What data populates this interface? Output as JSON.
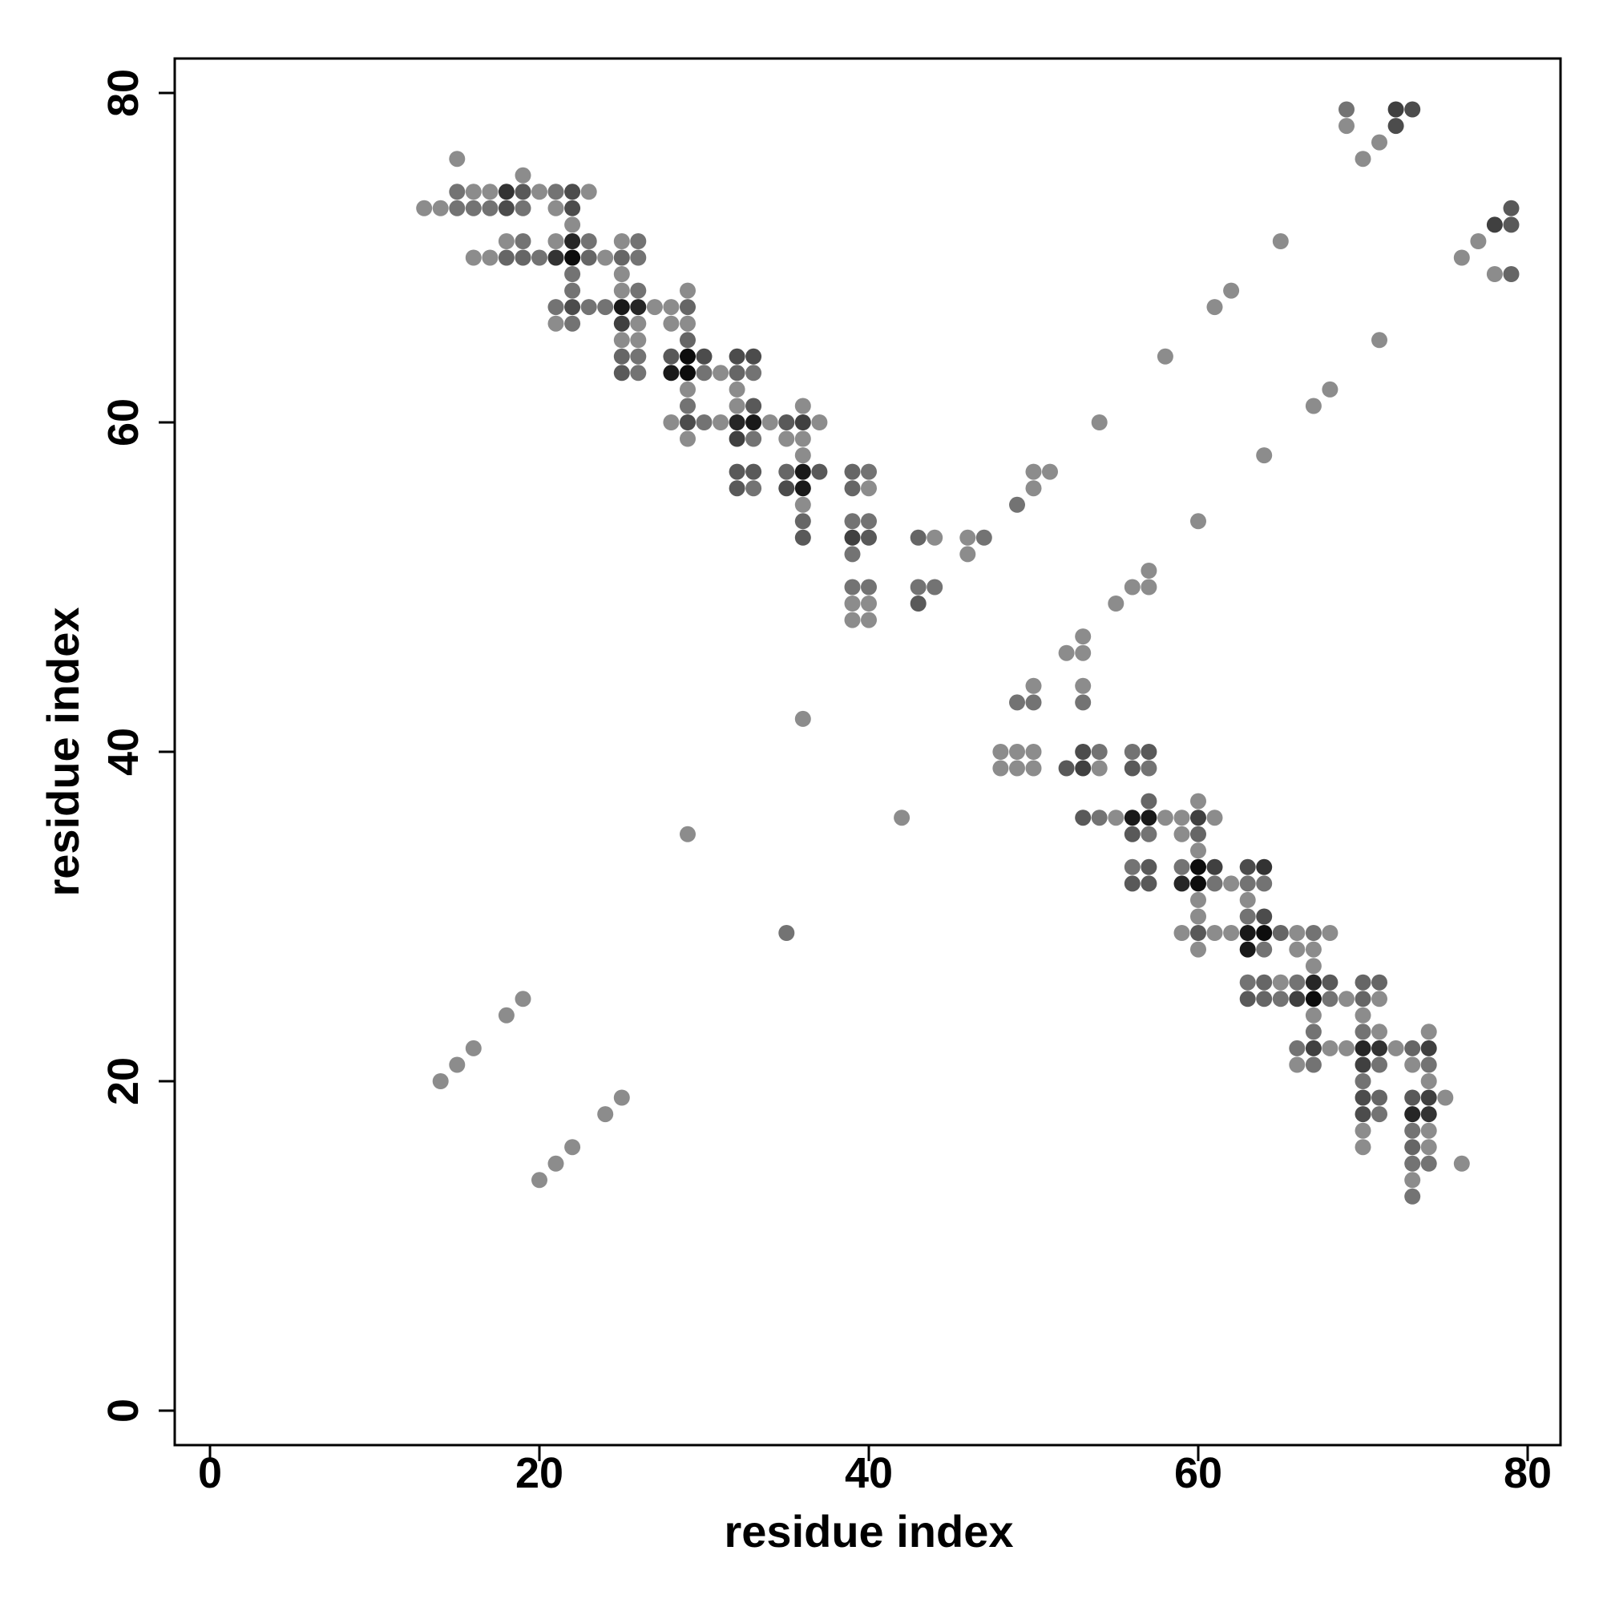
{
  "chart_data": {
    "type": "scatter",
    "title": "",
    "xlabel": "residue index",
    "ylabel": "residue index",
    "xlim": [
      -2,
      82
    ],
    "ylim": [
      -2,
      82
    ],
    "xticks": [
      0,
      20,
      40,
      60,
      80
    ],
    "yticks": [
      0,
      20,
      40,
      60,
      80
    ],
    "grid": false,
    "point_color": "#000000",
    "intensity_scale": "point opacity, 0 (light gray) to 1 (black)",
    "points": [
      [
        15,
        76,
        0.45
      ],
      [
        19,
        75,
        0.45
      ],
      [
        13,
        73,
        0.45
      ],
      [
        14,
        73,
        0.45
      ],
      [
        15,
        73,
        0.55
      ],
      [
        16,
        73,
        0.55
      ],
      [
        17,
        73,
        0.55
      ],
      [
        18,
        73,
        0.7
      ],
      [
        19,
        73,
        0.55
      ],
      [
        21,
        73,
        0.45
      ],
      [
        22,
        73,
        0.7
      ],
      [
        15,
        74,
        0.55
      ],
      [
        16,
        74,
        0.45
      ],
      [
        17,
        74,
        0.45
      ],
      [
        18,
        74,
        0.8
      ],
      [
        19,
        74,
        0.65
      ],
      [
        20,
        74,
        0.45
      ],
      [
        21,
        74,
        0.55
      ],
      [
        22,
        74,
        0.7
      ],
      [
        23,
        74,
        0.45
      ],
      [
        22,
        72,
        0.45
      ],
      [
        18,
        71,
        0.45
      ],
      [
        19,
        71,
        0.55
      ],
      [
        21,
        71,
        0.45
      ],
      [
        22,
        71,
        0.85
      ],
      [
        23,
        71,
        0.55
      ],
      [
        25,
        71,
        0.45
      ],
      [
        26,
        71,
        0.55
      ],
      [
        16,
        70,
        0.45
      ],
      [
        17,
        70,
        0.45
      ],
      [
        18,
        70,
        0.6
      ],
      [
        19,
        70,
        0.6
      ],
      [
        20,
        70,
        0.55
      ],
      [
        21,
        70,
        0.8
      ],
      [
        22,
        70,
        0.95
      ],
      [
        23,
        70,
        0.6
      ],
      [
        24,
        70,
        0.45
      ],
      [
        25,
        70,
        0.6
      ],
      [
        26,
        70,
        0.55
      ],
      [
        22,
        69,
        0.55
      ],
      [
        25,
        69,
        0.45
      ],
      [
        22,
        68,
        0.55
      ],
      [
        25,
        68,
        0.45
      ],
      [
        26,
        68,
        0.55
      ],
      [
        21,
        67,
        0.55
      ],
      [
        22,
        67,
        0.7
      ],
      [
        23,
        67,
        0.55
      ],
      [
        24,
        67,
        0.55
      ],
      [
        25,
        67,
        0.9
      ],
      [
        26,
        67,
        0.85
      ],
      [
        27,
        67,
        0.45
      ],
      [
        28,
        67,
        0.45
      ],
      [
        29,
        67,
        0.6
      ],
      [
        29,
        68,
        0.45
      ],
      [
        21,
        66,
        0.45
      ],
      [
        22,
        66,
        0.55
      ],
      [
        25,
        66,
        0.75
      ],
      [
        26,
        66,
        0.45
      ],
      [
        28,
        66,
        0.45
      ],
      [
        29,
        66,
        0.45
      ],
      [
        25,
        65,
        0.45
      ],
      [
        26,
        65,
        0.45
      ],
      [
        29,
        65,
        0.6
      ],
      [
        25,
        64,
        0.6
      ],
      [
        26,
        64,
        0.55
      ],
      [
        28,
        64,
        0.65
      ],
      [
        29,
        64,
        0.95
      ],
      [
        30,
        64,
        0.7
      ],
      [
        32,
        64,
        0.7
      ],
      [
        33,
        64,
        0.7
      ],
      [
        25,
        63,
        0.65
      ],
      [
        26,
        63,
        0.55
      ],
      [
        28,
        63,
        0.9
      ],
      [
        29,
        63,
        0.95
      ],
      [
        30,
        63,
        0.55
      ],
      [
        31,
        63,
        0.45
      ],
      [
        32,
        63,
        0.6
      ],
      [
        33,
        63,
        0.55
      ],
      [
        29,
        62,
        0.45
      ],
      [
        32,
        62,
        0.45
      ],
      [
        29,
        61,
        0.55
      ],
      [
        32,
        61,
        0.45
      ],
      [
        33,
        61,
        0.65
      ],
      [
        36,
        61,
        0.45
      ],
      [
        28,
        60,
        0.45
      ],
      [
        29,
        60,
        0.7
      ],
      [
        30,
        60,
        0.55
      ],
      [
        31,
        60,
        0.45
      ],
      [
        32,
        60,
        0.85
      ],
      [
        33,
        60,
        0.9
      ],
      [
        34,
        60,
        0.45
      ],
      [
        35,
        60,
        0.65
      ],
      [
        36,
        60,
        0.75
      ],
      [
        37,
        60,
        0.45
      ],
      [
        29,
        59,
        0.45
      ],
      [
        32,
        59,
        0.75
      ],
      [
        33,
        59,
        0.55
      ],
      [
        35,
        59,
        0.45
      ],
      [
        36,
        59,
        0.45
      ],
      [
        36,
        58,
        0.45
      ],
      [
        33,
        57,
        0.65
      ],
      [
        35,
        57,
        0.6
      ],
      [
        36,
        57,
        0.9
      ],
      [
        37,
        57,
        0.65
      ],
      [
        32,
        57,
        0.65
      ],
      [
        32,
        56,
        0.65
      ],
      [
        33,
        56,
        0.55
      ],
      [
        35,
        56,
        0.7
      ],
      [
        36,
        56,
        0.9
      ],
      [
        36,
        55,
        0.45
      ],
      [
        36,
        54,
        0.6
      ],
      [
        36,
        53,
        0.65
      ],
      [
        39,
        57,
        0.6
      ],
      [
        40,
        57,
        0.55
      ],
      [
        39,
        56,
        0.6
      ],
      [
        40,
        56,
        0.45
      ],
      [
        39,
        54,
        0.55
      ],
      [
        40,
        54,
        0.55
      ],
      [
        39,
        53,
        0.75
      ],
      [
        40,
        53,
        0.65
      ],
      [
        39,
        52,
        0.55
      ],
      [
        39,
        50,
        0.55
      ],
      [
        40,
        50,
        0.55
      ],
      [
        39,
        49,
        0.45
      ],
      [
        40,
        49,
        0.45
      ],
      [
        39,
        48,
        0.45
      ],
      [
        40,
        48,
        0.45
      ],
      [
        43,
        53,
        0.6
      ],
      [
        44,
        53,
        0.45
      ],
      [
        43,
        50,
        0.55
      ],
      [
        44,
        50,
        0.55
      ],
      [
        43,
        49,
        0.65
      ],
      [
        46,
        53,
        0.45
      ],
      [
        47,
        53,
        0.55
      ],
      [
        46,
        52,
        0.45
      ],
      [
        49,
        55,
        0.55
      ],
      [
        50,
        57,
        0.45
      ],
      [
        51,
        57,
        0.45
      ],
      [
        50,
        56,
        0.45
      ],
      [
        54,
        60,
        0.45
      ],
      [
        35,
        29,
        0.55
      ],
      [
        29,
        35,
        0.45
      ],
      [
        36,
        42,
        0.45
      ],
      [
        42,
        36,
        0.45
      ],
      [
        14,
        20,
        0.45
      ],
      [
        15,
        21,
        0.45
      ],
      [
        16,
        22,
        0.45
      ],
      [
        18,
        24,
        0.45
      ],
      [
        19,
        25,
        0.45
      ],
      [
        20,
        14,
        0.45
      ],
      [
        21,
        15,
        0.45
      ],
      [
        22,
        16,
        0.45
      ],
      [
        24,
        18,
        0.45
      ],
      [
        25,
        19,
        0.45
      ],
      [
        55,
        49,
        0.45
      ],
      [
        56,
        50,
        0.45
      ],
      [
        57,
        50,
        0.45
      ],
      [
        57,
        51,
        0.45
      ],
      [
        58,
        64,
        0.45
      ],
      [
        60,
        54,
        0.45
      ],
      [
        61,
        67,
        0.45
      ],
      [
        62,
        68,
        0.45
      ],
      [
        64,
        58,
        0.45
      ],
      [
        65,
        71,
        0.45
      ],
      [
        67,
        61,
        0.45
      ],
      [
        68,
        62,
        0.45
      ],
      [
        71,
        65,
        0.45
      ],
      [
        52,
        46,
        0.45
      ],
      [
        53,
        46,
        0.45
      ],
      [
        53,
        47,
        0.45
      ],
      [
        49,
        43,
        0.55
      ],
      [
        50,
        43,
        0.55
      ],
      [
        50,
        44,
        0.45
      ],
      [
        53,
        44,
        0.45
      ],
      [
        53,
        43,
        0.55
      ],
      [
        48,
        40,
        0.45
      ],
      [
        49,
        40,
        0.45
      ],
      [
        50,
        40,
        0.45
      ],
      [
        48,
        39,
        0.45
      ],
      [
        49,
        39,
        0.45
      ],
      [
        50,
        39,
        0.45
      ],
      [
        52,
        39,
        0.65
      ],
      [
        53,
        39,
        0.75
      ],
      [
        54,
        39,
        0.45
      ],
      [
        53,
        40,
        0.7
      ],
      [
        54,
        40,
        0.55
      ],
      [
        56,
        40,
        0.55
      ],
      [
        57,
        40,
        0.65
      ],
      [
        56,
        39,
        0.65
      ],
      [
        57,
        39,
        0.55
      ],
      [
        53,
        36,
        0.65
      ],
      [
        54,
        36,
        0.55
      ],
      [
        55,
        36,
        0.45
      ],
      [
        56,
        36,
        0.9
      ],
      [
        57,
        36,
        0.9
      ],
      [
        58,
        36,
        0.45
      ],
      [
        59,
        36,
        0.45
      ],
      [
        60,
        36,
        0.75
      ],
      [
        61,
        36,
        0.45
      ],
      [
        57,
        37,
        0.6
      ],
      [
        60,
        37,
        0.45
      ],
      [
        56,
        35,
        0.65
      ],
      [
        57,
        35,
        0.55
      ],
      [
        59,
        35,
        0.45
      ],
      [
        60,
        35,
        0.6
      ],
      [
        60,
        34,
        0.45
      ],
      [
        56,
        33,
        0.55
      ],
      [
        57,
        33,
        0.65
      ],
      [
        59,
        33,
        0.55
      ],
      [
        60,
        33,
        0.95
      ],
      [
        61,
        33,
        0.75
      ],
      [
        63,
        33,
        0.7
      ],
      [
        64,
        33,
        0.8
      ],
      [
        56,
        32,
        0.65
      ],
      [
        57,
        32,
        0.65
      ],
      [
        59,
        32,
        0.85
      ],
      [
        60,
        32,
        0.95
      ],
      [
        61,
        32,
        0.55
      ],
      [
        62,
        32,
        0.45
      ],
      [
        63,
        32,
        0.55
      ],
      [
        64,
        32,
        0.55
      ],
      [
        60,
        31,
        0.45
      ],
      [
        63,
        31,
        0.45
      ],
      [
        60,
        30,
        0.45
      ],
      [
        63,
        30,
        0.55
      ],
      [
        64,
        30,
        0.7
      ],
      [
        59,
        29,
        0.45
      ],
      [
        60,
        29,
        0.65
      ],
      [
        61,
        29,
        0.45
      ],
      [
        62,
        29,
        0.45
      ],
      [
        63,
        29,
        0.9
      ],
      [
        64,
        29,
        0.95
      ],
      [
        65,
        29,
        0.6
      ],
      [
        66,
        29,
        0.45
      ],
      [
        67,
        29,
        0.55
      ],
      [
        68,
        29,
        0.45
      ],
      [
        60,
        28,
        0.45
      ],
      [
        63,
        28,
        0.9
      ],
      [
        64,
        28,
        0.55
      ],
      [
        66,
        28,
        0.45
      ],
      [
        67,
        28,
        0.45
      ],
      [
        67,
        27,
        0.45
      ],
      [
        63,
        26,
        0.55
      ],
      [
        64,
        26,
        0.6
      ],
      [
        65,
        26,
        0.45
      ],
      [
        66,
        26,
        0.55
      ],
      [
        67,
        26,
        0.85
      ],
      [
        68,
        26,
        0.65
      ],
      [
        70,
        26,
        0.6
      ],
      [
        71,
        26,
        0.6
      ],
      [
        63,
        25,
        0.65
      ],
      [
        64,
        25,
        0.6
      ],
      [
        65,
        25,
        0.55
      ],
      [
        66,
        25,
        0.75
      ],
      [
        67,
        25,
        0.95
      ],
      [
        68,
        25,
        0.55
      ],
      [
        69,
        25,
        0.45
      ],
      [
        70,
        25,
        0.6
      ],
      [
        71,
        25,
        0.45
      ],
      [
        67,
        24,
        0.45
      ],
      [
        70,
        24,
        0.45
      ],
      [
        67,
        23,
        0.55
      ],
      [
        70,
        23,
        0.55
      ],
      [
        71,
        23,
        0.45
      ],
      [
        74,
        23,
        0.45
      ],
      [
        66,
        22,
        0.55
      ],
      [
        67,
        22,
        0.75
      ],
      [
        68,
        22,
        0.45
      ],
      [
        69,
        22,
        0.45
      ],
      [
        70,
        22,
        0.85
      ],
      [
        71,
        22,
        0.8
      ],
      [
        72,
        22,
        0.45
      ],
      [
        73,
        22,
        0.6
      ],
      [
        74,
        22,
        0.75
      ],
      [
        66,
        21,
        0.45
      ],
      [
        67,
        21,
        0.55
      ],
      [
        70,
        21,
        0.75
      ],
      [
        71,
        21,
        0.55
      ],
      [
        73,
        21,
        0.45
      ],
      [
        74,
        21,
        0.55
      ],
      [
        70,
        20,
        0.55
      ],
      [
        74,
        20,
        0.45
      ],
      [
        70,
        19,
        0.7
      ],
      [
        71,
        19,
        0.6
      ],
      [
        73,
        19,
        0.65
      ],
      [
        74,
        19,
        0.75
      ],
      [
        75,
        19,
        0.45
      ],
      [
        70,
        18,
        0.7
      ],
      [
        71,
        18,
        0.55
      ],
      [
        73,
        18,
        0.85
      ],
      [
        74,
        18,
        0.8
      ],
      [
        70,
        17,
        0.45
      ],
      [
        73,
        17,
        0.55
      ],
      [
        74,
        17,
        0.45
      ],
      [
        70,
        16,
        0.45
      ],
      [
        73,
        16,
        0.6
      ],
      [
        74,
        16,
        0.45
      ],
      [
        73,
        15,
        0.55
      ],
      [
        74,
        15,
        0.55
      ],
      [
        76,
        15,
        0.45
      ],
      [
        73,
        14,
        0.45
      ],
      [
        73,
        13,
        0.55
      ],
      [
        69,
        79,
        0.55
      ],
      [
        72,
        79,
        0.75
      ],
      [
        73,
        79,
        0.7
      ],
      [
        69,
        78,
        0.45
      ],
      [
        72,
        78,
        0.7
      ],
      [
        71,
        77,
        0.45
      ],
      [
        70,
        76,
        0.45
      ],
      [
        79,
        73,
        0.65
      ],
      [
        78,
        72,
        0.75
      ],
      [
        79,
        72,
        0.65
      ],
      [
        77,
        71,
        0.45
      ],
      [
        76,
        70,
        0.45
      ],
      [
        78,
        69,
        0.45
      ],
      [
        79,
        69,
        0.6
      ]
    ]
  }
}
